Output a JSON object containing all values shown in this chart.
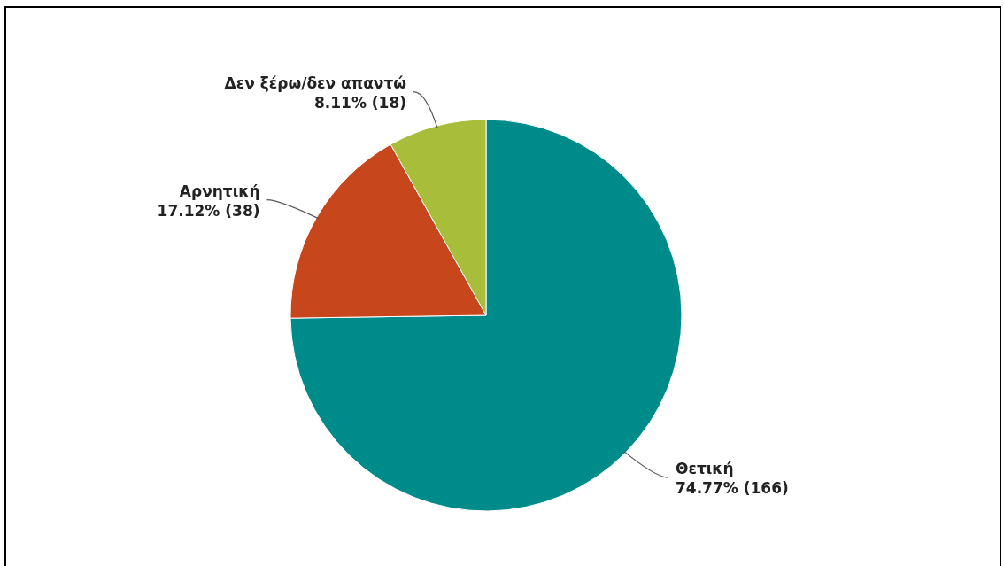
{
  "chart_data": {
    "type": "pie",
    "categories": [
      "Θετική",
      "Αρνητική",
      "Δεν ξέρω/δεν απαντώ"
    ],
    "values": [
      166,
      38,
      18
    ],
    "value_labels": [
      "74.77% (166)",
      "17.12% (38)",
      "8.11% (18)"
    ],
    "colors": [
      "#008b8b",
      "#c8461b",
      "#a8be3a"
    ]
  }
}
